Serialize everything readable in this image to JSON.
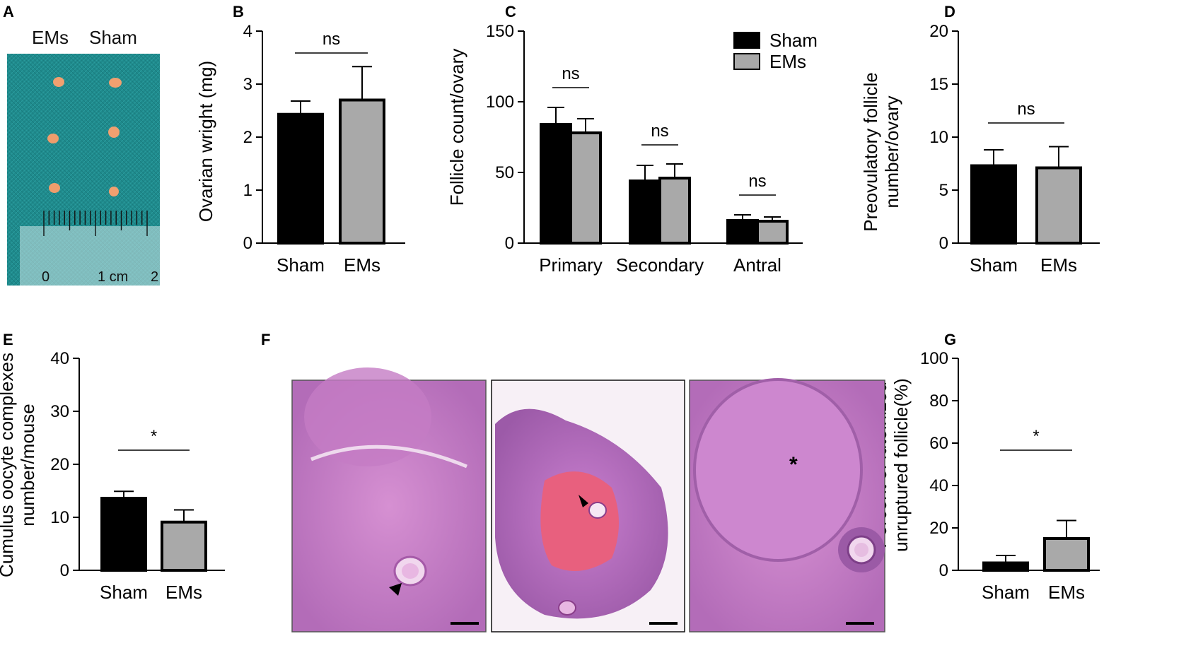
{
  "panels": {
    "A": {
      "label": "A",
      "group_labels": [
        "EMs",
        "Sham"
      ],
      "ruler_labels": [
        "0",
        "1 cm",
        "2"
      ],
      "colors": {
        "background": "#1f8a8c",
        "ovary": "#f0a070"
      }
    },
    "F": {
      "label": "F",
      "marker": "*"
    }
  },
  "colors": {
    "sham": "#000000",
    "ems": "#a9a9a9"
  },
  "chart_data": [
    {
      "id": "B",
      "label": "B",
      "type": "bar",
      "categories": [
        "Sham",
        "EMs"
      ],
      "values": [
        2.43,
        2.7
      ],
      "errors": [
        0.25,
        0.63
      ],
      "ylabel": "Ovarian wright (mg)",
      "ylim": [
        0,
        4
      ],
      "yticks": [
        "0",
        "1",
        "2",
        "3",
        "4"
      ],
      "significance": [
        {
          "text": "ns",
          "from": 0,
          "to": 1
        }
      ]
    },
    {
      "id": "C",
      "label": "C",
      "type": "bar",
      "categories": [
        "Primary",
        "Secondary",
        "Antral"
      ],
      "series": [
        {
          "name": "Sham",
          "values": [
            84,
            44,
            16
          ],
          "errors": [
            12,
            11,
            4
          ]
        },
        {
          "name": "EMs",
          "values": [
            78,
            46,
            15.5
          ],
          "errors": [
            10,
            10,
            3
          ]
        }
      ],
      "ylabel": "Follicle count/ovary",
      "ylim": [
        0,
        150
      ],
      "yticks": [
        "0",
        "50",
        "100",
        "150"
      ],
      "significance": [
        "ns",
        "ns",
        "ns"
      ],
      "legend": "top-right"
    },
    {
      "id": "D",
      "label": "D",
      "type": "bar",
      "categories": [
        "Sham",
        "EMs"
      ],
      "values": [
        7.3,
        7.1
      ],
      "errors": [
        1.5,
        2.0
      ],
      "ylabel": [
        "Preovulatory follicle",
        "number/ovary"
      ],
      "ylim": [
        0,
        20
      ],
      "yticks": [
        "0",
        "5",
        "10",
        "15",
        "20"
      ],
      "significance": [
        {
          "text": "ns",
          "from": 0,
          "to": 1
        }
      ]
    },
    {
      "id": "E",
      "label": "E",
      "type": "bar",
      "categories": [
        "Sham",
        "EMs"
      ],
      "values": [
        13.6,
        9.1
      ],
      "errors": [
        1.3,
        2.3
      ],
      "ylabel": [
        "Cumulus oocyte complexes",
        "number/mouse"
      ],
      "ylim": [
        0,
        40
      ],
      "yticks": [
        "0",
        "10",
        "20",
        "30",
        "40"
      ],
      "significance": [
        {
          "text": "*",
          "from": 0,
          "to": 1
        }
      ]
    },
    {
      "id": "G",
      "label": "G",
      "type": "bar",
      "categories": [
        "Sham",
        "EMs"
      ],
      "values": [
        3.5,
        15
      ],
      "errors": [
        3.5,
        8.5
      ],
      "ylabel": [
        "Percent of luteinized",
        "unruptured follicle(%)"
      ],
      "ylim": [
        0,
        100
      ],
      "yticks": [
        "0",
        "20",
        "40",
        "60",
        "80",
        "100"
      ],
      "significance": [
        {
          "text": "*",
          "from": 0,
          "to": 1
        }
      ]
    }
  ]
}
